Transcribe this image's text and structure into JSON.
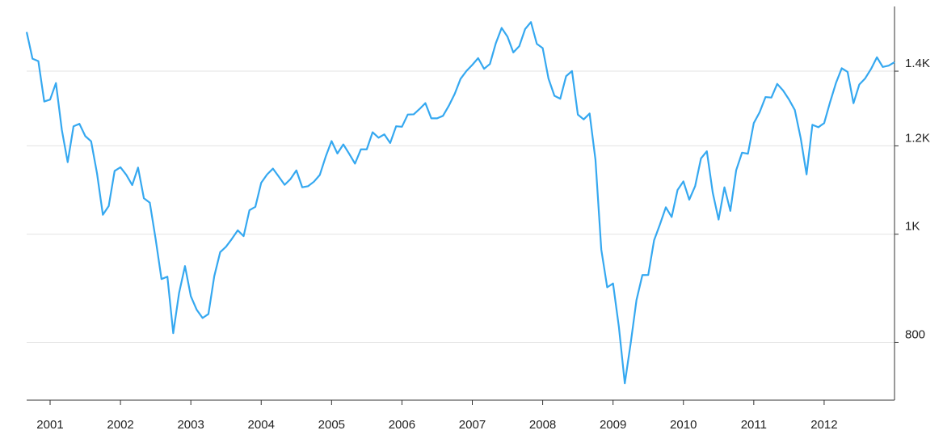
{
  "chart_data": {
    "type": "line",
    "log_y": true,
    "grid": true,
    "y_axis_side": "right",
    "x": [
      2000.667,
      2000.75,
      2000.833,
      2000.917,
      2001,
      2001.083,
      2001.167,
      2001.25,
      2001.333,
      2001.417,
      2001.5,
      2001.583,
      2001.667,
      2001.75,
      2001.833,
      2001.917,
      2002,
      2002.083,
      2002.167,
      2002.25,
      2002.333,
      2002.417,
      2002.5,
      2002.583,
      2002.667,
      2002.75,
      2002.833,
      2002.917,
      2003,
      2003.083,
      2003.167,
      2003.25,
      2003.333,
      2003.417,
      2003.5,
      2003.583,
      2003.667,
      2003.75,
      2003.833,
      2003.917,
      2004,
      2004.083,
      2004.167,
      2004.25,
      2004.333,
      2004.417,
      2004.5,
      2004.583,
      2004.667,
      2004.75,
      2004.833,
      2004.917,
      2005,
      2005.083,
      2005.167,
      2005.25,
      2005.333,
      2005.417,
      2005.5,
      2005.583,
      2005.667,
      2005.75,
      2005.833,
      2005.917,
      2006,
      2006.083,
      2006.167,
      2006.25,
      2006.333,
      2006.417,
      2006.5,
      2006.583,
      2006.667,
      2006.75,
      2006.833,
      2006.917,
      2007,
      2007.083,
      2007.167,
      2007.25,
      2007.333,
      2007.417,
      2007.5,
      2007.583,
      2007.667,
      2007.75,
      2007.833,
      2007.917,
      2008,
      2008.083,
      2008.167,
      2008.25,
      2008.333,
      2008.417,
      2008.5,
      2008.583,
      2008.667,
      2008.75,
      2008.833,
      2008.917,
      2009,
      2009.083,
      2009.167,
      2009.25,
      2009.333,
      2009.417,
      2009.5,
      2009.583,
      2009.667,
      2009.75,
      2009.833,
      2009.917,
      2010,
      2010.083,
      2010.167,
      2010.25,
      2010.333,
      2010.417,
      2010.5,
      2010.583,
      2010.667,
      2010.75,
      2010.833,
      2010.917,
      2011,
      2011.083,
      2011.167,
      2011.25,
      2011.333,
      2011.417,
      2011.5,
      2011.583,
      2011.667,
      2011.75,
      2011.833,
      2011.917,
      2012,
      2012.083,
      2012.167,
      2012.25,
      2012.333,
      2012.417,
      2012.5,
      2012.583,
      2012.667,
      2012.75,
      2012.833,
      2012.917,
      2013
    ],
    "series": [
      {
        "color": "#35a8f0",
        "values": [
          1517.68,
          1436.51,
          1429.4,
          1314.95,
          1320.28,
          1366.01,
          1239.94,
          1160.33,
          1249.46,
          1255.82,
          1224.38,
          1211.23,
          1133.58,
          1040.94,
          1059.78,
          1139.45,
          1148.08,
          1130.2,
          1106.73,
          1147.39,
          1076.92,
          1067.14,
          989.82,
          911.62,
          916.07,
          815.28,
          885.76,
          936.31,
          879.82,
          855.7,
          841.15,
          848.18,
          916.92,
          963.59,
          974.5,
          990.31,
          1008.01,
          995.97,
          1050.71,
          1058.2,
          1111.92,
          1131.13,
          1144.94,
          1126.21,
          1107.3,
          1120.68,
          1140.84,
          1101.72,
          1104.24,
          1114.58,
          1130.2,
          1173.82,
          1211.92,
          1181.27,
          1203.6,
          1180.59,
          1156.85,
          1191.5,
          1191.33,
          1234.18,
          1220.33,
          1228.81,
          1207.01,
          1249.48,
          1248.29,
          1280.08,
          1280.66,
          1294.83,
          1310.61,
          1270.09,
          1270.2,
          1276.66,
          1303.82,
          1335.85,
          1377.94,
          1400.63,
          1418.3,
          1438.24,
          1406.82,
          1420.86,
          1482.37,
          1530.62,
          1503.35,
          1455.27,
          1473.99,
          1526.75,
          1549.38,
          1481.14,
          1468.36,
          1378.55,
          1330.63,
          1322.7,
          1385.59,
          1400.38,
          1280,
          1267.38,
          1282.83,
          1166.36,
          968.75,
          896.24,
          903.25,
          825.88,
          735.09,
          797.87,
          872.81,
          919.14,
          919.32,
          987.48,
          1020.62,
          1057.08,
          1036.19,
          1095.63,
          1115.1,
          1073.87,
          1104.49,
          1169.43,
          1186.69,
          1089.41,
          1030.71,
          1101.6,
          1049.33,
          1141.2,
          1183.26,
          1180.55,
          1257.64,
          1286.12,
          1327.22,
          1325.83,
          1363.61,
          1345.2,
          1320.64,
          1292.28,
          1218.89,
          1131.42,
          1253.3,
          1246.96,
          1257.6,
          1312.41,
          1365.68,
          1408.47,
          1397.91,
          1310.33,
          1362.16,
          1379.32,
          1406.58,
          1440.67,
          1412.16,
          1416.18,
          1426.19
        ]
      }
    ],
    "xlim": [
      2000.667,
      2013
    ],
    "xticks": [
      2001,
      2002,
      2003,
      2004,
      2005,
      2006,
      2007,
      2008,
      2009,
      2010,
      2011,
      2012
    ],
    "ylim": [
      710,
      1600
    ],
    "yticks": [
      800,
      {
        "value": 1000,
        "label": "1K"
      },
      {
        "value": 1200,
        "label": "1.2K"
      },
      {
        "value": 1400,
        "label": "1.4K"
      }
    ]
  }
}
